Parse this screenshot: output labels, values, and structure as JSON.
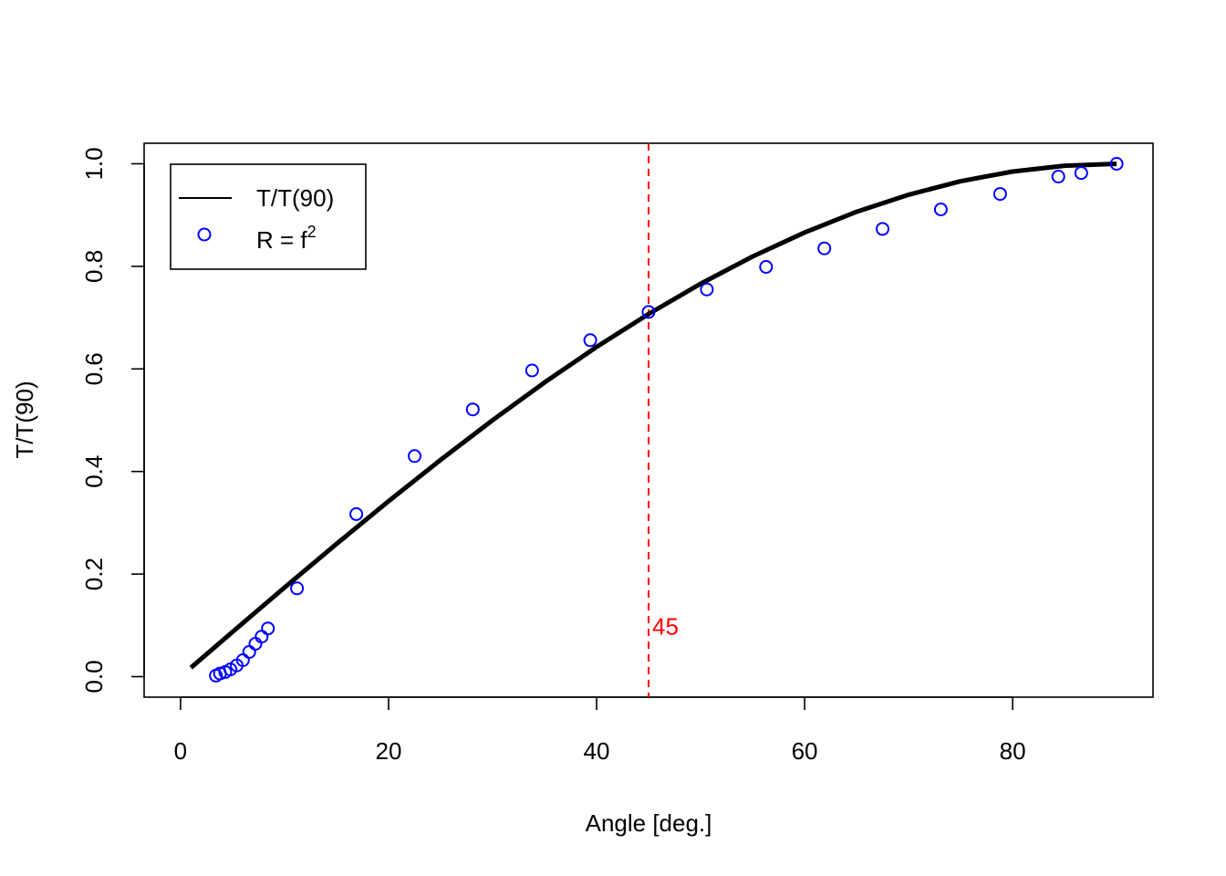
{
  "chart_data": {
    "type": "line",
    "title": "",
    "xlabel": "Angle [deg.]",
    "ylabel": "T/T(90)",
    "xlim": [
      -3.5,
      93.5
    ],
    "ylim": [
      -0.04,
      1.04
    ],
    "xticks": [
      0,
      20,
      40,
      60,
      80
    ],
    "yticks": [
      0.0,
      0.2,
      0.4,
      0.6,
      0.8,
      1.0
    ],
    "xtick_labels": [
      "0",
      "20",
      "40",
      "60",
      "80"
    ],
    "ytick_labels": [
      "0.0",
      "0.2",
      "0.4",
      "0.6",
      "0.8",
      "1.0"
    ],
    "grid": false,
    "legend_position": "top-left",
    "series": [
      {
        "name": "T/T(90)",
        "kind": "line",
        "color": "#000000",
        "x": [
          1,
          5,
          10,
          15,
          20,
          25,
          30,
          35,
          40,
          45,
          50,
          55,
          60,
          65,
          70,
          75,
          80,
          85,
          90
        ],
        "y": [
          0.0175,
          0.0872,
          0.1736,
          0.2588,
          0.342,
          0.4226,
          0.5,
          0.5736,
          0.6428,
          0.7071,
          0.766,
          0.8192,
          0.866,
          0.9063,
          0.9397,
          0.9659,
          0.9848,
          0.9962,
          1.0
        ]
      },
      {
        "name": "R = f",
        "name_superscript": "2",
        "kind": "points",
        "color": "#0000ff",
        "x": [
          3.4,
          3.8,
          4.3,
          4.8,
          5.4,
          6.0,
          6.6,
          7.2,
          7.8,
          8.4,
          11.2,
          16.9,
          22.5,
          28.1,
          33.8,
          39.4,
          45.0,
          50.6,
          56.3,
          61.9,
          67.5,
          73.1,
          78.8,
          84.4,
          86.6,
          90.0
        ],
        "y": [
          0.002,
          0.006,
          0.009,
          0.014,
          0.022,
          0.032,
          0.048,
          0.064,
          0.078,
          0.094,
          0.172,
          0.317,
          0.43,
          0.521,
          0.597,
          0.656,
          0.711,
          0.755,
          0.799,
          0.835,
          0.873,
          0.911,
          0.941,
          0.975,
          0.982,
          1.0
        ]
      }
    ],
    "annotations": [
      {
        "type": "vline",
        "x": 45,
        "color": "#ff0000",
        "style": "dashed",
        "label": "45",
        "label_y": 0.1
      }
    ]
  }
}
